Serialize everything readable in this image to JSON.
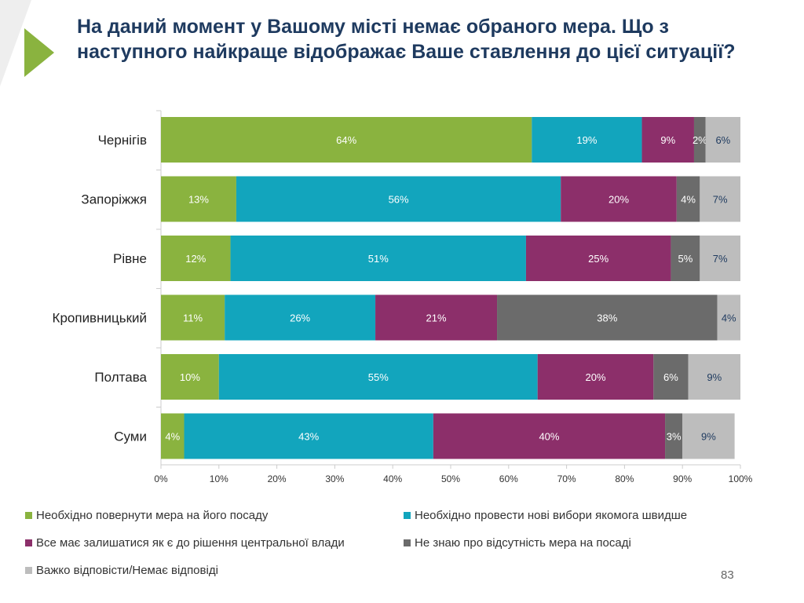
{
  "title": "На даний момент у Вашому місті немає обраного мера. Що з наступного найкраще відображає Ваше ставлення до цієї ситуації?",
  "page_number": "83",
  "colors": {
    "accent_green": "#8ab33f",
    "title_navy": "#1e3a5f"
  },
  "chart_data": {
    "type": "bar",
    "orientation": "horizontal",
    "stacked": true,
    "categories": [
      "Чернігів",
      "Запоріжжя",
      "Рівне",
      "Кропивницький",
      "Полтава",
      "Суми"
    ],
    "series": [
      {
        "name": "Необхідно повернути мера на його посаду",
        "color": "#8ab33f",
        "values": [
          64,
          13,
          12,
          11,
          10,
          4
        ],
        "labels": [
          "64%",
          "13%",
          "12%",
          "11%",
          "10%",
          "4%"
        ]
      },
      {
        "name": "Необхідно провести нові вибори якомога швидше",
        "color": "#12a5bd",
        "values": [
          19,
          56,
          51,
          26,
          55,
          43
        ],
        "labels": [
          "19%",
          "56%",
          "51%",
          "26%",
          "55%",
          "43%"
        ]
      },
      {
        "name": "Все має залишатися як є до рішення центральної влади",
        "color": "#8c2f6a",
        "values": [
          9,
          20,
          25,
          21,
          20,
          40
        ],
        "labels": [
          "9%",
          "20%",
          "25%",
          "21%",
          "20%",
          "40%"
        ]
      },
      {
        "name": "Не знаю про відсутність мера на посаді",
        "color": "#6b6b6b",
        "values": [
          2,
          4,
          5,
          38,
          6,
          3
        ],
        "labels": [
          "2%",
          "4%",
          "5%",
          "38%",
          "6%",
          "3%"
        ]
      },
      {
        "name": "Важко відповісти/Немає відповіді",
        "color": "#bdbdbd",
        "values": [
          6,
          7,
          7,
          4,
          9,
          9
        ],
        "labels": [
          "6%",
          "7%",
          "7%",
          "4%",
          "9%",
          "9%"
        ]
      }
    ],
    "xlim": [
      0,
      100
    ],
    "x_ticks": [
      "0%",
      "10%",
      "20%",
      "30%",
      "40%",
      "50%",
      "60%",
      "70%",
      "80%",
      "90%",
      "100%"
    ],
    "legend_position": "bottom",
    "grid": false
  }
}
